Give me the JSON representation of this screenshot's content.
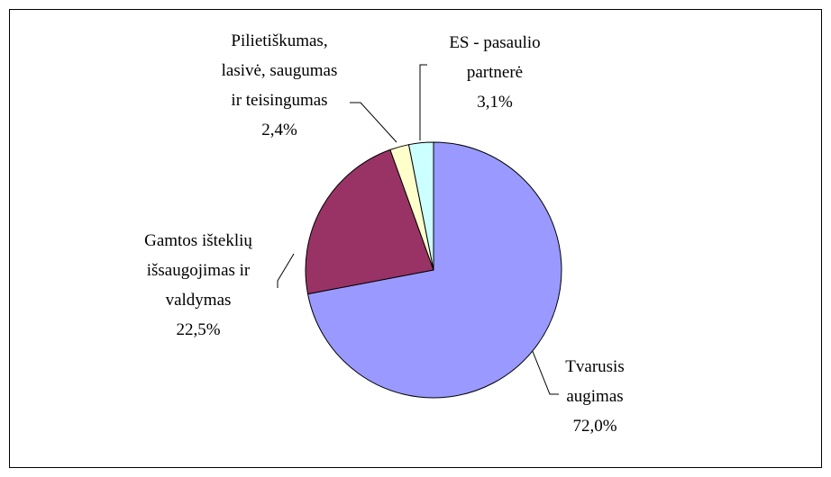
{
  "chart_data": {
    "type": "pie",
    "categories": [
      "Tvarusis augimas",
      "Gamtos išteklių išsaugojimas ir valdymas",
      "Pilietiškumas, lasivė, saugumas ir teisingumas",
      "ES - pasaulio partnerė"
    ],
    "values": [
      72.0,
      22.5,
      2.4,
      3.1
    ],
    "value_labels": [
      "72,0%",
      "22,5%",
      "2,4%",
      "3,1%"
    ],
    "colors": [
      "#9999ff",
      "#993366",
      "#ffffcc",
      "#ccffff"
    ]
  }
}
